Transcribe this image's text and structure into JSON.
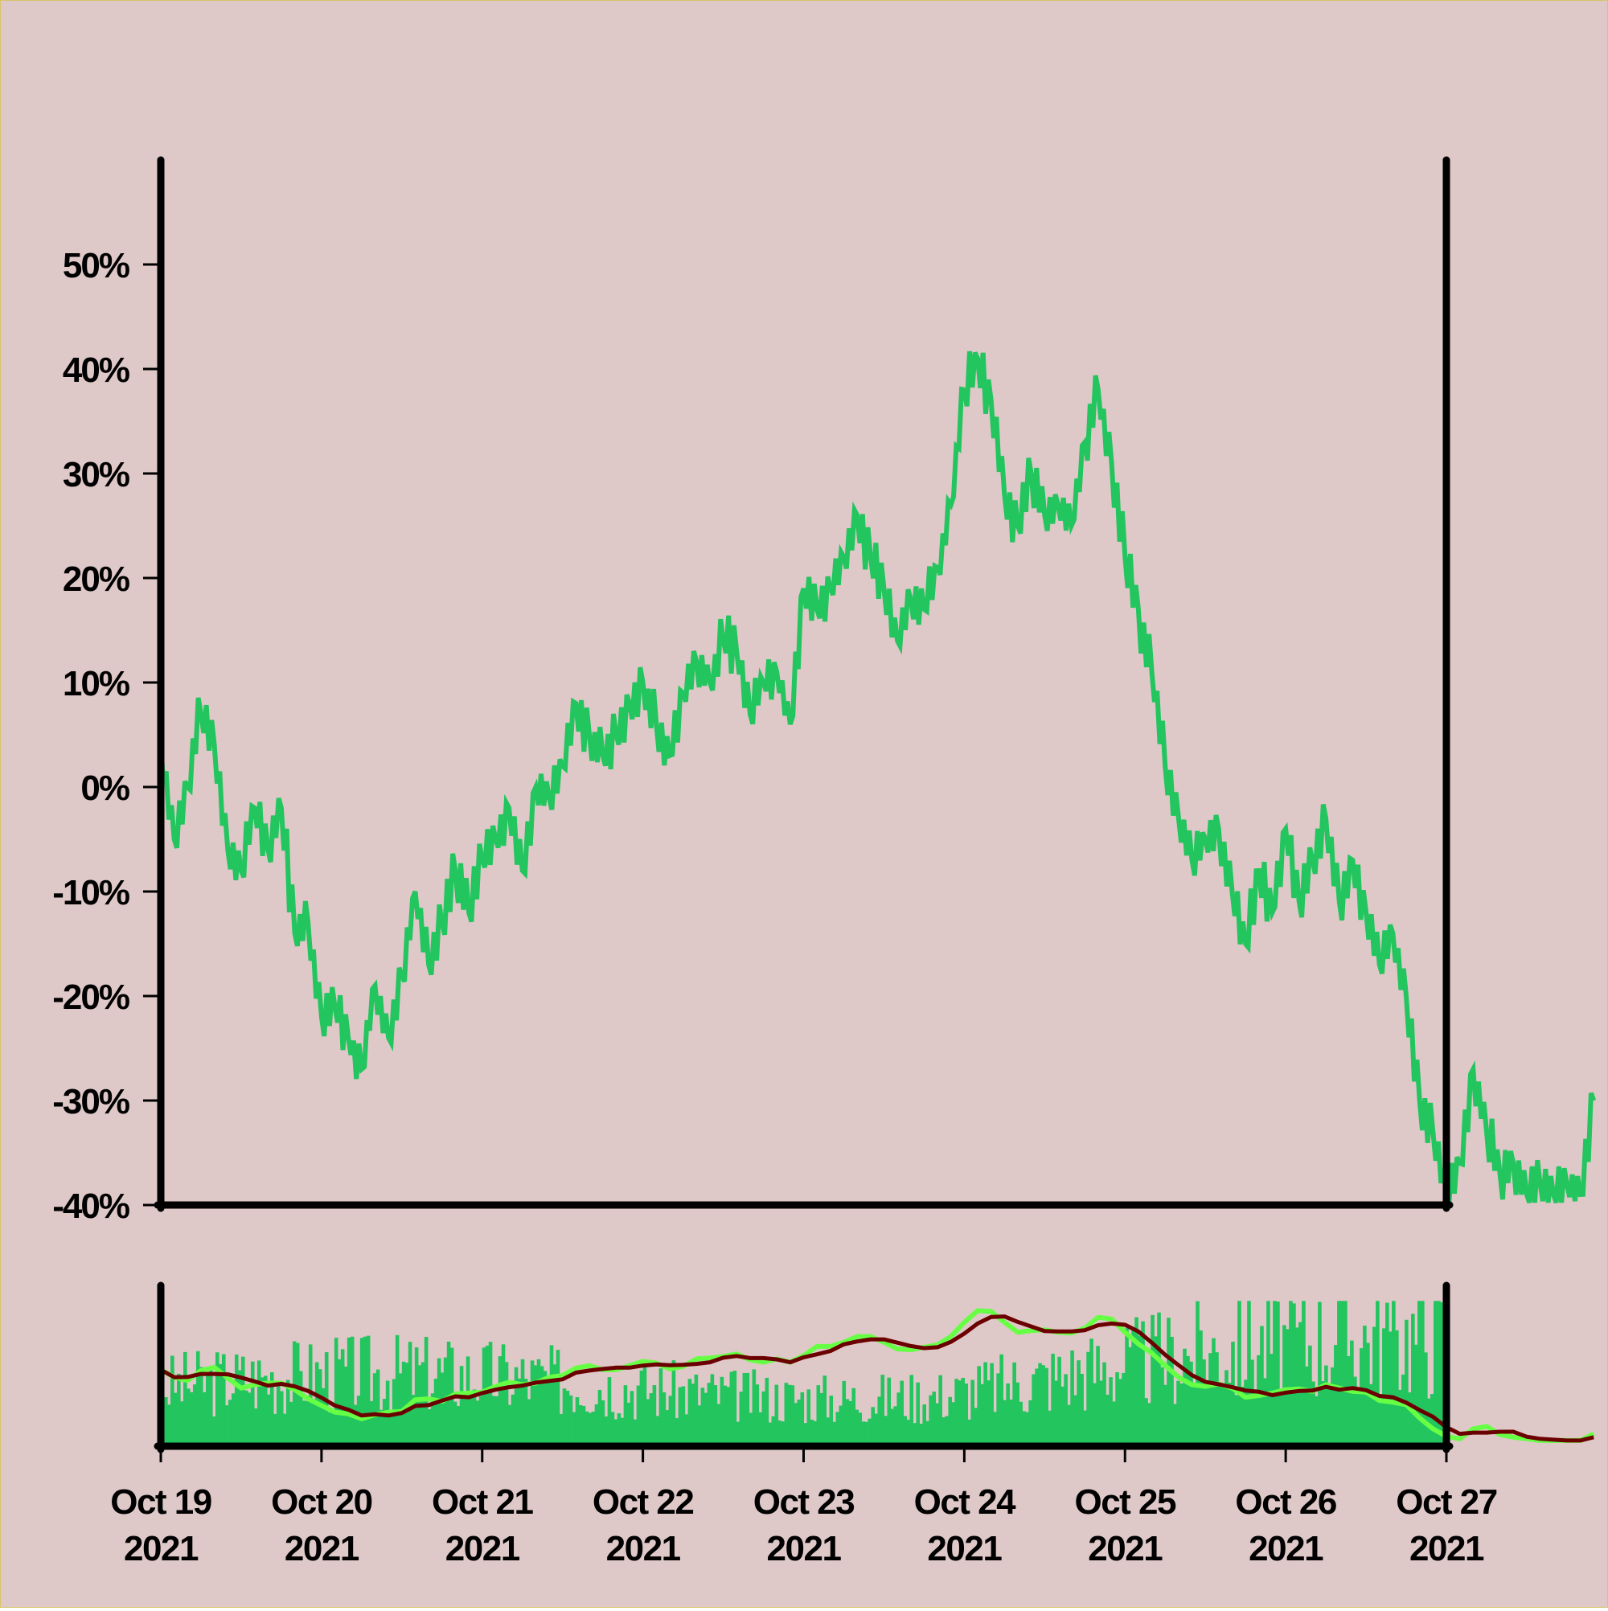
{
  "chart_data": [
    {
      "type": "line",
      "x_type": "date",
      "xlim": [
        "2021-10-19",
        "2021-10-27"
      ],
      "ylim": [
        -40,
        60
      ],
      "y_ticks": [
        -40,
        -30,
        -20,
        -10,
        0,
        10,
        20,
        30,
        40,
        50
      ],
      "y_tick_labels": [
        "-40%",
        "-30%",
        "-20%",
        "-10%",
        "0%",
        "10%",
        "20%",
        "30%",
        "40%",
        "50%"
      ],
      "y_unit": "%",
      "grid": false,
      "series": [
        {
          "color": "#22c55e",
          "points": [
            [
              "2021-10-19 00:00",
              4
            ],
            [
              "2021-10-19 02:00",
              -5
            ],
            [
              "2021-10-19 04:00",
              0
            ],
            [
              "2021-10-19 06:00",
              7
            ],
            [
              "2021-10-19 08:00",
              4
            ],
            [
              "2021-10-19 10:00",
              -6
            ],
            [
              "2021-10-19 12:00",
              -8
            ],
            [
              "2021-10-19 14:00",
              -2
            ],
            [
              "2021-10-19 16:00",
              -6
            ],
            [
              "2021-10-19 18:00",
              -2
            ],
            [
              "2021-10-19 20:00",
              -14
            ],
            [
              "2021-10-19 22:00",
              -13
            ],
            [
              "2021-10-20 00:00",
              -22
            ],
            [
              "2021-10-20 02:00",
              -21
            ],
            [
              "2021-10-20 04:00",
              -24
            ],
            [
              "2021-10-20 06:00",
              -27
            ],
            [
              "2021-10-20 08:00",
              -19
            ],
            [
              "2021-10-20 10:00",
              -24
            ],
            [
              "2021-10-20 12:00",
              -18
            ],
            [
              "2021-10-20 14:00",
              -10
            ],
            [
              "2021-10-20 16:00",
              -17
            ],
            [
              "2021-10-20 18:00",
              -13
            ],
            [
              "2021-10-20 20:00",
              -8
            ],
            [
              "2021-10-20 22:00",
              -12
            ],
            [
              "2021-10-21 00:00",
              -7
            ],
            [
              "2021-10-21 02:00",
              -5
            ],
            [
              "2021-10-21 04:00",
              -2
            ],
            [
              "2021-10-21 06:00",
              -8
            ],
            [
              "2021-10-21 08:00",
              0
            ],
            [
              "2021-10-21 10:00",
              -1
            ],
            [
              "2021-10-21 12:00",
              2
            ],
            [
              "2021-10-21 14:00",
              8
            ],
            [
              "2021-10-21 16:00",
              5
            ],
            [
              "2021-10-21 18:00",
              3
            ],
            [
              "2021-10-21 20:00",
              5
            ],
            [
              "2021-10-21 22:00",
              8
            ],
            [
              "2021-10-22 00:00",
              10
            ],
            [
              "2021-10-22 02:00",
              6
            ],
            [
              "2021-10-22 04:00",
              3
            ],
            [
              "2021-10-22 06:00",
              9
            ],
            [
              "2021-10-22 08:00",
              12
            ],
            [
              "2021-10-22 10:00",
              10
            ],
            [
              "2021-10-22 12:00",
              14
            ],
            [
              "2021-10-22 14:00",
              13
            ],
            [
              "2021-10-22 16:00",
              7
            ],
            [
              "2021-10-22 18:00",
              10
            ],
            [
              "2021-10-22 20:00",
              11
            ],
            [
              "2021-10-22 22:00",
              6
            ],
            [
              "2021-10-23 00:00",
              19
            ],
            [
              "2021-10-23 02:00",
              17
            ],
            [
              "2021-10-23 04:00",
              19
            ],
            [
              "2021-10-23 06:00",
              22
            ],
            [
              "2021-10-23 08:00",
              26
            ],
            [
              "2021-10-23 10:00",
              22
            ],
            [
              "2021-10-23 12:00",
              19
            ],
            [
              "2021-10-23 14:00",
              14
            ],
            [
              "2021-10-23 16:00",
              18
            ],
            [
              "2021-10-23 18:00",
              17
            ],
            [
              "2021-10-23 20:00",
              21
            ],
            [
              "2021-10-23 22:00",
              27
            ],
            [
              "2021-10-24 00:00",
              38
            ],
            [
              "2021-10-24 02:00",
              41
            ],
            [
              "2021-10-24 04:00",
              37
            ],
            [
              "2021-10-24 06:00",
              28
            ],
            [
              "2021-10-24 08:00",
              25
            ],
            [
              "2021-10-24 10:00",
              30
            ],
            [
              "2021-10-24 12:00",
              26
            ],
            [
              "2021-10-24 14:00",
              27
            ],
            [
              "2021-10-24 16:00",
              25
            ],
            [
              "2021-10-24 18:00",
              33
            ],
            [
              "2021-10-24 20:00",
              38
            ],
            [
              "2021-10-24 22:00",
              31
            ],
            [
              "2021-10-25 00:00",
              22
            ],
            [
              "2021-10-25 02:00",
              17
            ],
            [
              "2021-10-25 04:00",
              11
            ],
            [
              "2021-10-25 06:00",
              2
            ],
            [
              "2021-10-25 08:00",
              -3
            ],
            [
              "2021-10-25 10:00",
              -7
            ],
            [
              "2021-10-25 12:00",
              -5
            ],
            [
              "2021-10-25 14:00",
              -4
            ],
            [
              "2021-10-25 16:00",
              -10
            ],
            [
              "2021-10-25 18:00",
              -15
            ],
            [
              "2021-10-25 20:00",
              -8
            ],
            [
              "2021-10-25 22:00",
              -12
            ],
            [
              "2021-10-26 00:00",
              -4
            ],
            [
              "2021-10-26 02:00",
              -11
            ],
            [
              "2021-10-26 04:00",
              -7
            ],
            [
              "2021-10-26 06:00",
              -3
            ],
            [
              "2021-10-26 08:00",
              -11
            ],
            [
              "2021-10-26 10:00",
              -7
            ],
            [
              "2021-10-26 12:00",
              -12
            ],
            [
              "2021-10-26 14:00",
              -17
            ],
            [
              "2021-10-26 16:00",
              -14
            ],
            [
              "2021-10-26 18:00",
              -20
            ],
            [
              "2021-10-26 20:00",
              -30
            ],
            [
              "2021-10-26 22:00",
              -33
            ],
            [
              "2021-10-27 00:00",
              -39
            ],
            [
              "2021-10-27 02:00",
              -36
            ],
            [
              "2021-10-27 04:00",
              -27
            ],
            [
              "2021-10-27 06:00",
              -33
            ],
            [
              "2021-10-27 08:00",
              -37
            ],
            [
              "2021-10-27 10:00",
              -36
            ],
            [
              "2021-10-27 12:00",
              -39
            ],
            [
              "2021-10-27 14:00",
              -38
            ],
            [
              "2021-10-27 16:00",
              -39
            ],
            [
              "2021-10-27 18:00",
              -38
            ],
            [
              "2021-10-27 20:00",
              -39
            ],
            [
              "2021-10-27 22:00",
              -30
            ]
          ]
        }
      ]
    },
    {
      "type": "bar",
      "x_type": "date",
      "xlim": [
        "2021-10-19",
        "2021-10-27"
      ],
      "x_tick_labels": [
        {
          "month_day": "Oct 19",
          "year": "2021"
        },
        {
          "month_day": "Oct 20",
          "year": "2021"
        },
        {
          "month_day": "Oct 21",
          "year": "2021"
        },
        {
          "month_day": "Oct 22",
          "year": "2021"
        },
        {
          "month_day": "Oct 23",
          "year": "2021"
        },
        {
          "month_day": "Oct 24",
          "year": "2021"
        },
        {
          "month_day": "Oct 25",
          "year": "2021"
        },
        {
          "month_day": "Oct 26",
          "year": "2021"
        },
        {
          "month_day": "Oct 27",
          "year": "2021"
        }
      ],
      "y_axis_labels_shown": false,
      "grid": false,
      "bar_color": "#22c55e",
      "overlay_lines": [
        {
          "color": "#66ff44"
        },
        {
          "color": "#6b0000"
        }
      ]
    }
  ],
  "colors": {
    "background": "#dfc8c8",
    "axes": "#000000",
    "price_line": "#22c55e",
    "volume_bars": "#22c55e",
    "fast_overlay": "#66ff44",
    "slow_overlay": "#6b0000"
  }
}
